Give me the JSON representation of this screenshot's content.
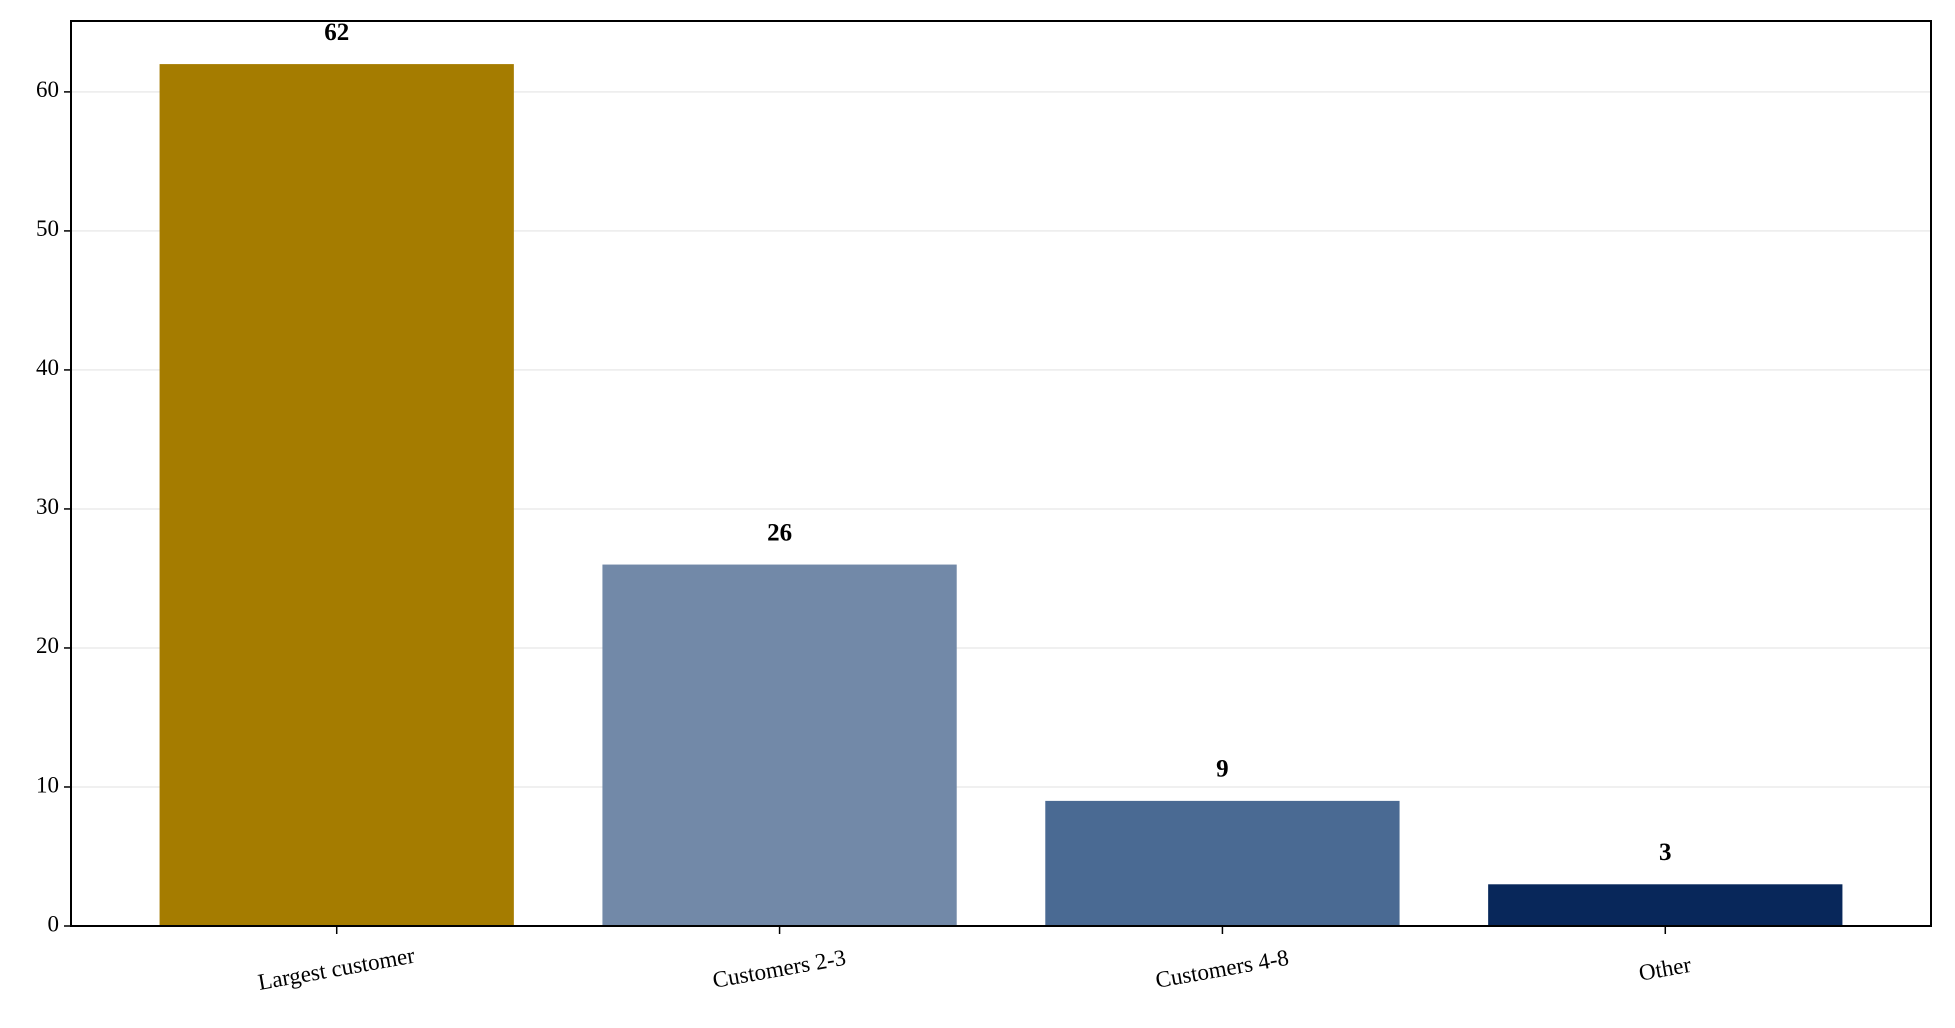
{
  "chart_data": {
    "type": "bar",
    "categories": [
      "Largest customer",
      "Customers 2-3",
      "Customers 4-8",
      "Other"
    ],
    "values": [
      62,
      26,
      9,
      3
    ],
    "value_labels": [
      "62",
      "26",
      "9",
      "3"
    ],
    "colors": [
      "#a57c00",
      "#7289a8",
      "#4a6a93",
      "#08275a"
    ],
    "ylim": [
      0,
      65.1
    ],
    "yticks": [
      0,
      10,
      20,
      30,
      40,
      50,
      60
    ],
    "grid": true
  }
}
